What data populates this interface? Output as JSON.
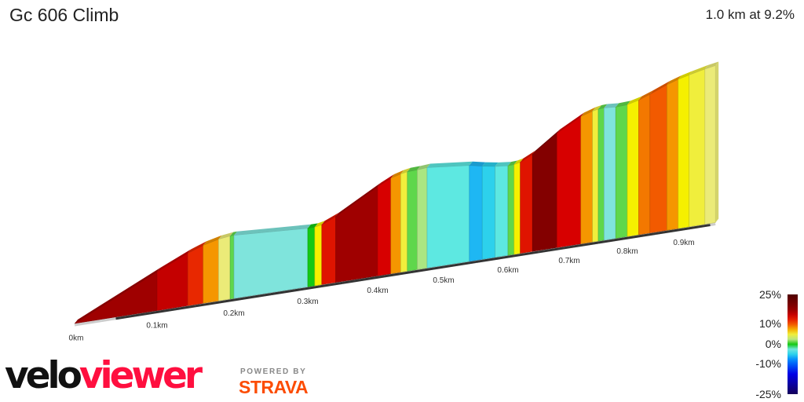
{
  "header": {
    "title": "Gc 606 Climb",
    "summary": "1.0 km at 9.2%"
  },
  "chart_data": {
    "type": "area",
    "style": "3d elevation profile coloured by gradient",
    "x_unit": "km",
    "x_ticks": [
      "0km",
      "0.1km",
      "0.2km",
      "0.3km",
      "0.4km",
      "0.5km",
      "0.6km",
      "0.7km",
      "0.8km",
      "0.9km"
    ],
    "segments": [
      {
        "from": 0,
        "to": 0.1,
        "gradient": 17
      },
      {
        "from": 0.1,
        "to": 0.14,
        "gradient": 15
      },
      {
        "from": 0.14,
        "to": 0.16,
        "gradient": 12
      },
      {
        "from": 0.16,
        "to": 0.18,
        "gradient": 8
      },
      {
        "from": 0.18,
        "to": 0.195,
        "gradient": 4
      },
      {
        "from": 0.195,
        "to": 0.2,
        "gradient": 1
      },
      {
        "from": 0.2,
        "to": 0.3,
        "gradient": -2
      },
      {
        "from": 0.3,
        "to": 0.31,
        "gradient": 0
      },
      {
        "from": 0.31,
        "to": 0.32,
        "gradient": 6
      },
      {
        "from": 0.32,
        "to": 0.34,
        "gradient": 13
      },
      {
        "from": 0.34,
        "to": 0.4,
        "gradient": 17
      },
      {
        "from": 0.4,
        "to": 0.42,
        "gradient": 14
      },
      {
        "from": 0.42,
        "to": 0.435,
        "gradient": 8
      },
      {
        "from": 0.435,
        "to": 0.445,
        "gradient": 5
      },
      {
        "from": 0.445,
        "to": 0.46,
        "gradient": 1
      },
      {
        "from": 0.46,
        "to": 0.475,
        "gradient": 2
      },
      {
        "from": 0.475,
        "to": 0.54,
        "gradient": -3
      },
      {
        "from": 0.54,
        "to": 0.56,
        "gradient": -6
      },
      {
        "from": 0.56,
        "to": 0.58,
        "gradient": -5
      },
      {
        "from": 0.58,
        "to": 0.6,
        "gradient": -3
      },
      {
        "from": 0.6,
        "to": 0.61,
        "gradient": 1
      },
      {
        "from": 0.61,
        "to": 0.62,
        "gradient": 6
      },
      {
        "from": 0.62,
        "to": 0.64,
        "gradient": 13
      },
      {
        "from": 0.64,
        "to": 0.68,
        "gradient": 19
      },
      {
        "from": 0.68,
        "to": 0.72,
        "gradient": 14
      },
      {
        "from": 0.72,
        "to": 0.74,
        "gradient": 8
      },
      {
        "from": 0.74,
        "to": 0.75,
        "gradient": 5
      },
      {
        "from": 0.75,
        "to": 0.76,
        "gradient": 1
      },
      {
        "from": 0.76,
        "to": 0.78,
        "gradient": -2
      },
      {
        "from": 0.78,
        "to": 0.8,
        "gradient": 1
      },
      {
        "from": 0.8,
        "to": 0.82,
        "gradient": 6
      },
      {
        "from": 0.82,
        "to": 0.84,
        "gradient": 9
      },
      {
        "from": 0.84,
        "to": 0.87,
        "gradient": 10
      },
      {
        "from": 0.87,
        "to": 0.89,
        "gradient": 8
      },
      {
        "from": 0.89,
        "to": 0.91,
        "gradient": 6
      },
      {
        "from": 0.91,
        "to": 0.94,
        "gradient": 5
      },
      {
        "from": 0.94,
        "to": 0.96,
        "gradient": 4
      }
    ],
    "legend": {
      "labels": [
        "25%",
        "10%",
        "0%",
        "-10%",
        "-25%"
      ],
      "range": [
        -25,
        25
      ],
      "placement": "bottom-right"
    }
  },
  "branding": {
    "logo_velo": "velo",
    "logo_viewer": "viewer",
    "powered_by": "POWERED BY",
    "strava": "STRAVA",
    "colors": {
      "viewer": "#ff0f3f",
      "strava": "#fc4c02"
    }
  }
}
